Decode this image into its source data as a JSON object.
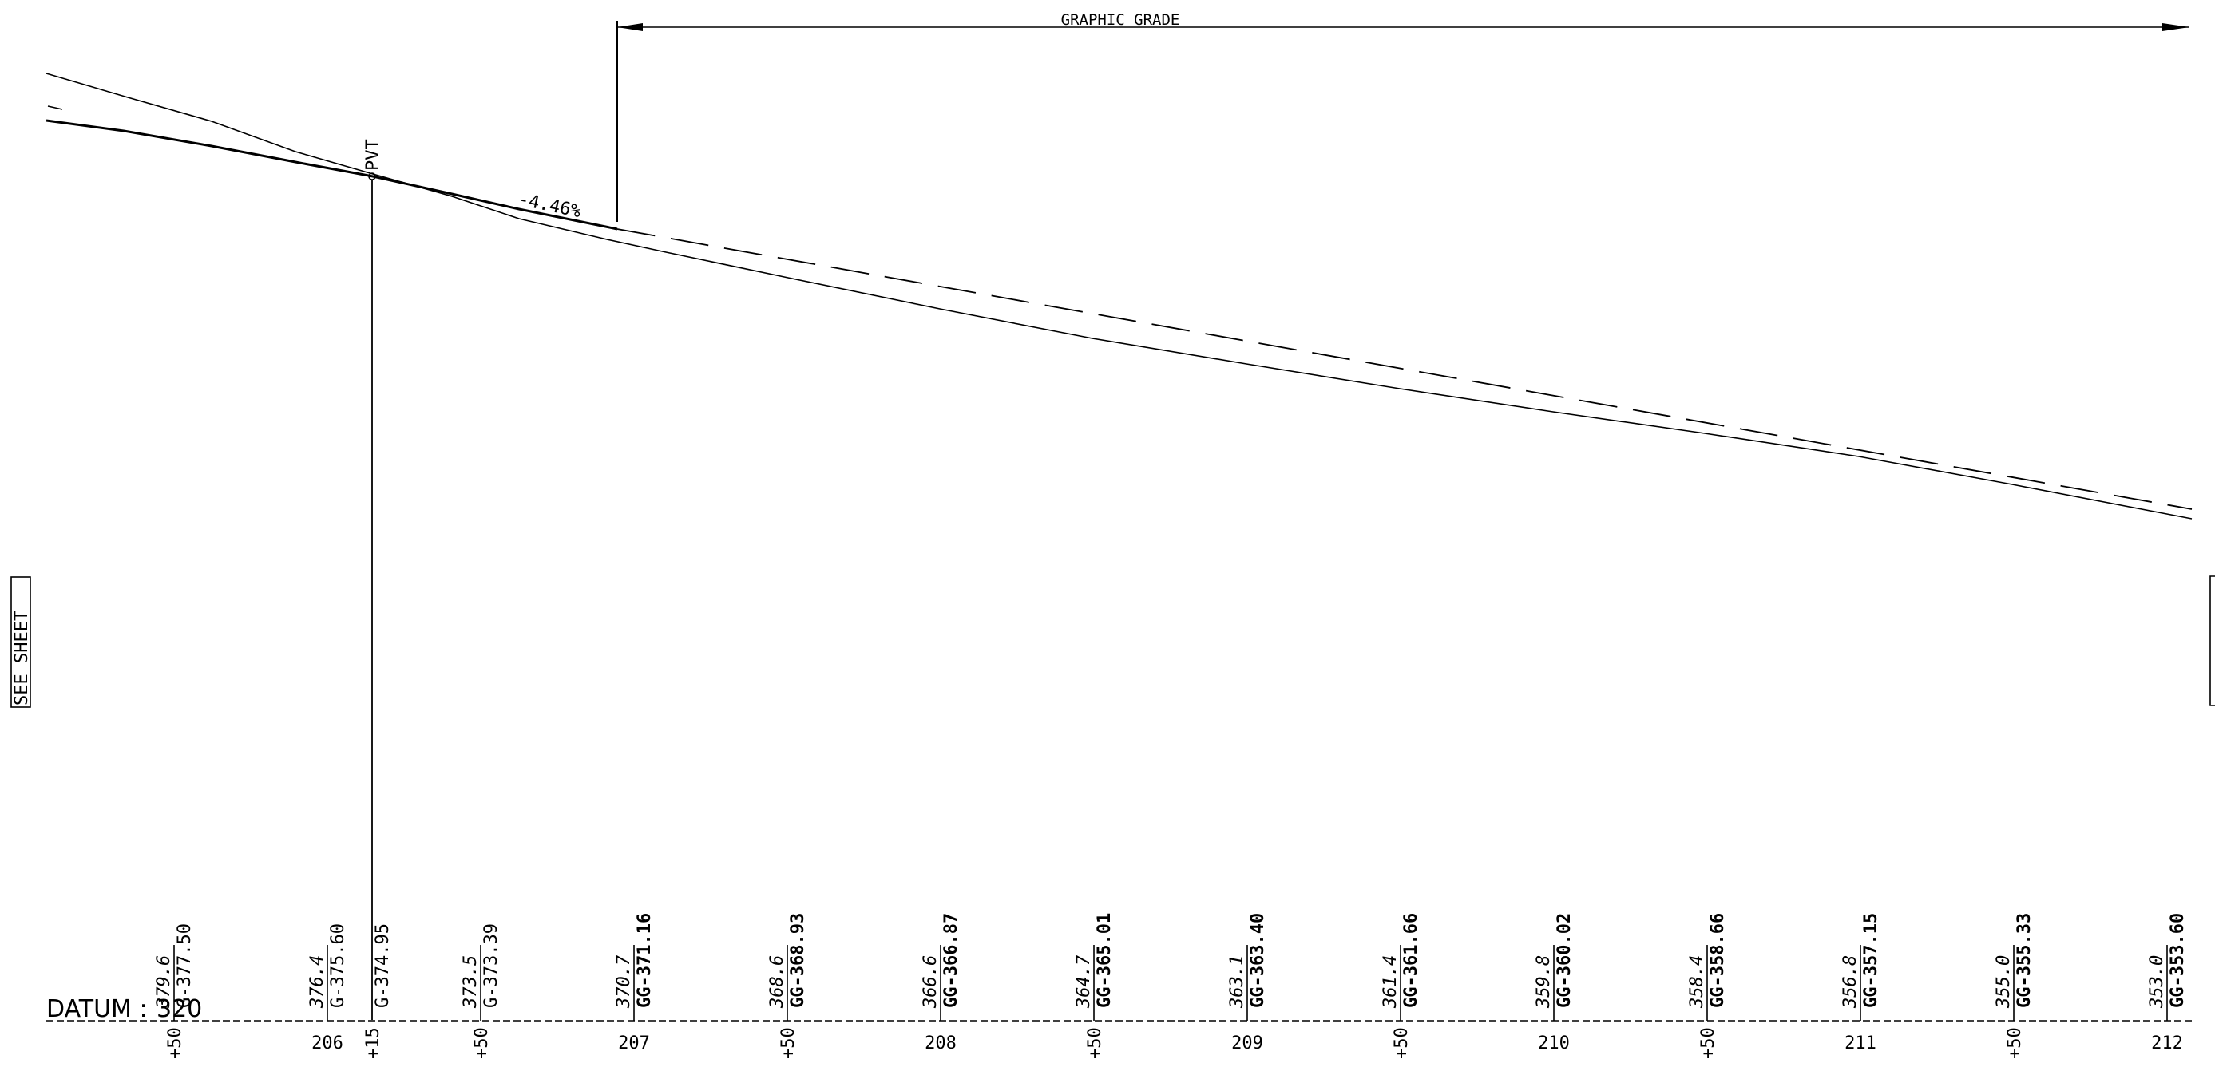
{
  "title": "GRAPHIC GRADE",
  "side_label": "SEE SHEET",
  "pvt_label": "PVT",
  "grade_label": "-4.46%",
  "datum": {
    "label": "DATUM :",
    "value": "320"
  },
  "stations": [
    {
      "station": "+50",
      "existing": "379.6",
      "grade": "G-377.50"
    },
    {
      "station": "206",
      "existing": "376.4",
      "grade": "G-375.60"
    },
    {
      "station": "+15",
      "existing": "",
      "grade": "G-374.95"
    },
    {
      "station": "+50",
      "existing": "373.5",
      "grade": "G-373.39"
    },
    {
      "station": "207",
      "existing": "370.7",
      "grade": "GG-371.16"
    },
    {
      "station": "+50",
      "existing": "368.6",
      "grade": "GG-368.93"
    },
    {
      "station": "208",
      "existing": "366.6",
      "grade": "GG-366.87"
    },
    {
      "station": "+50",
      "existing": "364.7",
      "grade": "GG-365.01"
    },
    {
      "station": "209",
      "existing": "363.1",
      "grade": "GG-363.40"
    },
    {
      "station": "+50",
      "existing": "361.4",
      "grade": "GG-361.66"
    },
    {
      "station": "210",
      "existing": "359.8",
      "grade": "GG-360.02"
    },
    {
      "station": "+50",
      "existing": "358.4",
      "grade": "GG-358.66"
    },
    {
      "station": "211",
      "existing": "356.8",
      "grade": "GG-357.15"
    },
    {
      "station": "+50",
      "existing": "355.0",
      "grade": "GG-355.33"
    },
    {
      "station": "212",
      "existing": "353.0",
      "grade": "GG-353.60"
    }
  ]
}
